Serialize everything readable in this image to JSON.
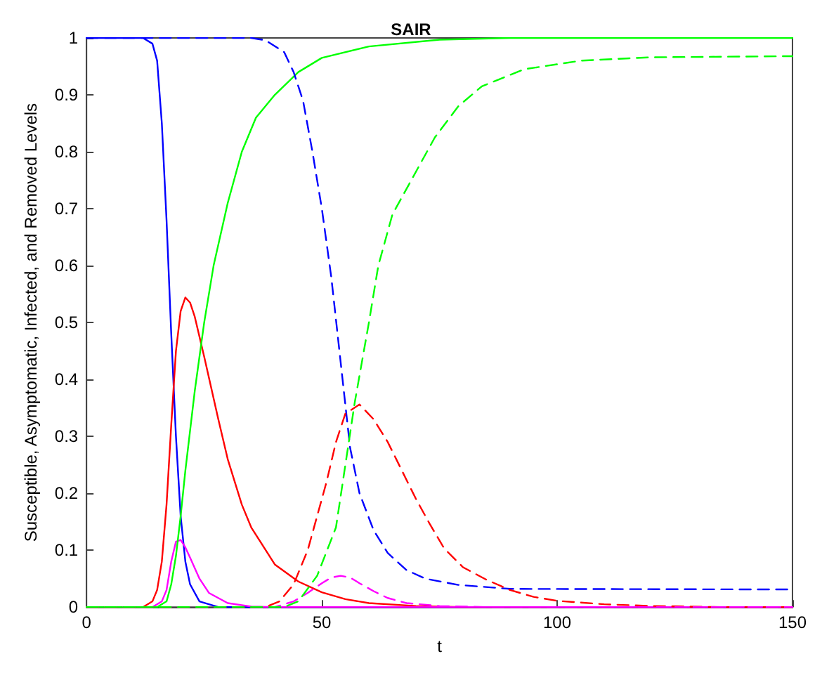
{
  "chart_data": {
    "type": "line",
    "title": "SAIR",
    "xlabel": "t",
    "ylabel": "Susceptible, Asymptomatic, Infected, and Removed Levels",
    "xlim": [
      0,
      150
    ],
    "xticks": [
      0,
      50,
      100,
      150
    ],
    "ylim": [
      0,
      1
    ],
    "yticks": [
      0,
      0.1,
      0.2,
      0.3,
      0.4,
      0.5,
      0.6,
      0.7,
      0.8,
      0.9,
      1
    ],
    "marker": "none",
    "series": [
      {
        "color": "#0000ff",
        "line_style": "solid",
        "x": [
          0,
          12,
          14,
          15,
          16,
          17,
          18,
          19,
          20,
          21,
          22,
          24,
          28,
          150
        ],
        "values": [
          1,
          1,
          0.99,
          0.96,
          0.85,
          0.68,
          0.48,
          0.3,
          0.16,
          0.08,
          0.04,
          0.01,
          0,
          0
        ]
      },
      {
        "color": "#ff0000",
        "line_style": "solid",
        "x": [
          0,
          12,
          14,
          15,
          16,
          17,
          18,
          19,
          20,
          21,
          22,
          23,
          25,
          28,
          30,
          33,
          35,
          40,
          45,
          50,
          55,
          60,
          70,
          80,
          150
        ],
        "values": [
          0,
          0,
          0.01,
          0.03,
          0.08,
          0.18,
          0.32,
          0.45,
          0.52,
          0.544,
          0.535,
          0.51,
          0.44,
          0.33,
          0.26,
          0.18,
          0.14,
          0.075,
          0.045,
          0.026,
          0.014,
          0.007,
          0.002,
          0,
          0
        ]
      },
      {
        "color": "#ff00ff",
        "line_style": "solid",
        "x": [
          0,
          14,
          16,
          17,
          18,
          19,
          20,
          21,
          22,
          24,
          26,
          30,
          35,
          40,
          150
        ],
        "values": [
          0,
          0,
          0.01,
          0.03,
          0.08,
          0.115,
          0.118,
          0.105,
          0.087,
          0.05,
          0.025,
          0.007,
          0.001,
          0,
          0
        ]
      },
      {
        "color": "#00ff00",
        "line_style": "solid",
        "x": [
          0,
          15,
          17,
          18,
          19,
          20,
          21,
          22,
          23,
          25,
          27,
          30,
          33,
          36,
          40,
          45,
          50,
          60,
          75,
          90,
          150
        ],
        "values": [
          0,
          0,
          0.01,
          0.04,
          0.09,
          0.16,
          0.24,
          0.31,
          0.38,
          0.5,
          0.6,
          0.71,
          0.8,
          0.86,
          0.9,
          0.94,
          0.965,
          0.985,
          0.997,
          1,
          1
        ]
      },
      {
        "color": "#0000ff",
        "line_style": "dashed",
        "x": [
          0,
          35,
          38,
          42,
          44,
          46,
          48,
          50,
          52,
          54,
          56,
          58,
          61,
          64,
          68,
          72,
          79,
          90,
          150
        ],
        "values": [
          1,
          1,
          0.996,
          0.975,
          0.94,
          0.89,
          0.8,
          0.7,
          0.58,
          0.43,
          0.28,
          0.2,
          0.135,
          0.095,
          0.065,
          0.05,
          0.039,
          0.032,
          0.031
        ]
      },
      {
        "color": "#ff0000",
        "line_style": "dashed",
        "x": [
          0,
          38,
          41,
          44,
          47,
          49,
          51,
          53,
          55,
          58,
          61,
          64,
          67,
          70,
          73,
          76,
          80,
          85,
          90,
          95,
          100,
          110,
          120,
          135,
          150
        ],
        "values": [
          0,
          0,
          0.01,
          0.04,
          0.1,
          0.16,
          0.22,
          0.29,
          0.34,
          0.356,
          0.33,
          0.29,
          0.24,
          0.19,
          0.145,
          0.103,
          0.07,
          0.048,
          0.03,
          0.018,
          0.011,
          0.005,
          0.002,
          0,
          0
        ]
      },
      {
        "color": "#ff00ff",
        "line_style": "dashed",
        "x": [
          0,
          40,
          44,
          47,
          50,
          52,
          54,
          56,
          58,
          61,
          64,
          68,
          75,
          85,
          150
        ],
        "values": [
          0,
          0,
          0.01,
          0.025,
          0.042,
          0.052,
          0.055,
          0.052,
          0.042,
          0.028,
          0.016,
          0.007,
          0.002,
          0,
          0
        ]
      },
      {
        "color": "#00ff00",
        "line_style": "dashed",
        "x": [
          0,
          42,
          45,
          49,
          53,
          55,
          57,
          60,
          62,
          65,
          69,
          74,
          79,
          84,
          93,
          105,
          120,
          150
        ],
        "values": [
          0,
          0,
          0.01,
          0.055,
          0.14,
          0.25,
          0.36,
          0.5,
          0.6,
          0.69,
          0.75,
          0.825,
          0.88,
          0.915,
          0.945,
          0.96,
          0.966,
          0.968
        ]
      }
    ]
  }
}
